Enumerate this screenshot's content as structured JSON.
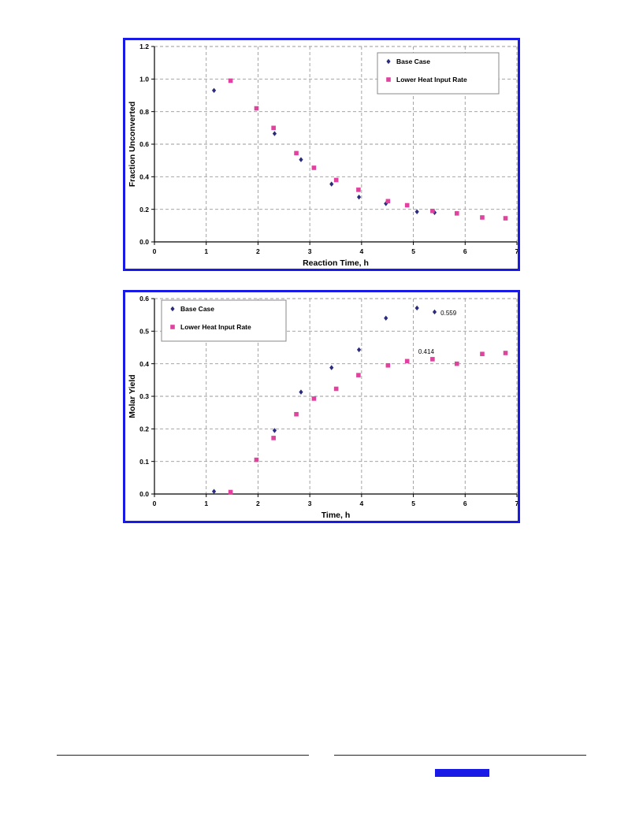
{
  "chart_data": [
    {
      "type": "scatter",
      "xlabel": "Reaction Time, h",
      "ylabel": "Fraction Unconverted",
      "xlim": [
        0,
        7
      ],
      "ylim": [
        0,
        1.2
      ],
      "xticks": [
        "0",
        "1",
        "2",
        "3",
        "4",
        "5",
        "6",
        "7"
      ],
      "yticks": [
        "0.0",
        "0.2",
        "0.4",
        "0.6",
        "0.8",
        "1.0",
        "1.2"
      ],
      "grid": true,
      "legend_position": "top-right",
      "series": [
        {
          "name": "Base Case",
          "marker": "diamond",
          "color": "#2b2b7d",
          "points": [
            [
              1.15,
              0.93
            ],
            [
              2.32,
              0.665
            ],
            [
              2.83,
              0.505
            ],
            [
              3.42,
              0.355
            ],
            [
              3.95,
              0.275
            ],
            [
              4.47,
              0.235
            ],
            [
              5.07,
              0.185
            ],
            [
              5.41,
              0.18
            ]
          ]
        },
        {
          "name": "Lower Heat Input Rate",
          "marker": "square",
          "color": "#e0439e",
          "points": [
            [
              1.47,
              0.99
            ],
            [
              1.97,
              0.82
            ],
            [
              2.3,
              0.7
            ],
            [
              2.74,
              0.545
            ],
            [
              3.08,
              0.455
            ],
            [
              3.51,
              0.38
            ],
            [
              3.94,
              0.32
            ],
            [
              4.51,
              0.25
            ],
            [
              4.88,
              0.225
            ],
            [
              5.37,
              0.19
            ],
            [
              5.84,
              0.175
            ],
            [
              6.33,
              0.15
            ],
            [
              6.78,
              0.145
            ]
          ]
        }
      ]
    },
    {
      "type": "scatter",
      "xlabel": "Time, h",
      "ylabel": "Molar Yield",
      "xlim": [
        0,
        7
      ],
      "ylim": [
        0,
        0.6
      ],
      "xticks": [
        "0",
        "1",
        "2",
        "3",
        "4",
        "5",
        "6",
        "7"
      ],
      "yticks": [
        "0.0",
        "0.1",
        "0.2",
        "0.3",
        "0.4",
        "0.5",
        "0.6"
      ],
      "grid": true,
      "legend_position": "top-left",
      "annotations": [
        {
          "text": "0.559",
          "x": 5.42,
          "y": 0.559
        },
        {
          "text": "0.414",
          "x": 5.37,
          "y": 0.414
        }
      ],
      "series": [
        {
          "name": "Base Case",
          "marker": "diamond",
          "color": "#2b2b7d",
          "points": [
            [
              1.15,
              0.008
            ],
            [
              2.32,
              0.195
            ],
            [
              2.83,
              0.313
            ],
            [
              3.42,
              0.388
            ],
            [
              3.95,
              0.443
            ],
            [
              4.47,
              0.54
            ],
            [
              5.07,
              0.571
            ],
            [
              5.41,
              0.559
            ]
          ]
        },
        {
          "name": "Lower Heat Input Rate",
          "marker": "square",
          "color": "#e0439e",
          "points": [
            [
              1.47,
              0.006
            ],
            [
              1.97,
              0.105
            ],
            [
              2.3,
              0.172
            ],
            [
              2.74,
              0.245
            ],
            [
              3.08,
              0.293
            ],
            [
              3.51,
              0.323
            ],
            [
              3.94,
              0.365
            ],
            [
              4.51,
              0.395
            ],
            [
              4.88,
              0.408
            ],
            [
              5.37,
              0.414
            ],
            [
              5.84,
              0.4
            ],
            [
              6.33,
              0.43
            ],
            [
              6.78,
              0.433
            ]
          ]
        }
      ]
    }
  ],
  "colors": {
    "frame_border": "#1a1ae6",
    "gridline": "#999999",
    "footer_bar": "#1a1ae6"
  }
}
